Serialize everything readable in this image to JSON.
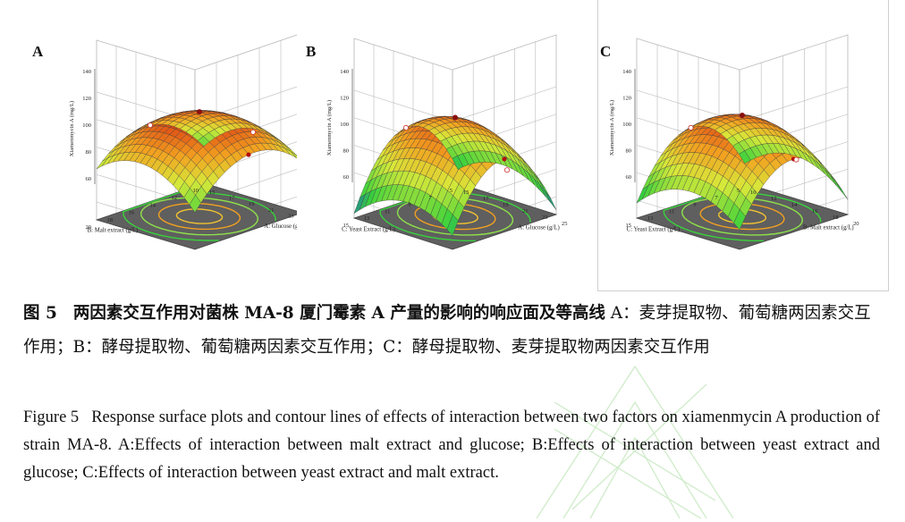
{
  "figure": {
    "panels": [
      {
        "label": "A",
        "zlabel": "Xiamenmycin A (mg/L)",
        "zticks": [
          "60",
          "80",
          "100",
          "120",
          "140"
        ],
        "left_axis": {
          "label": "B: Malt extract (g/L)",
          "ticks": [
            "10",
            "12",
            "14",
            "16",
            "18",
            "20"
          ]
        },
        "right_axis": {
          "label": "A: Glucose (g/L)",
          "ticks": [
            "15",
            "17",
            "19",
            "21",
            "23",
            "25"
          ]
        }
      },
      {
        "label": "B",
        "zlabel": "Xiamenmycin A (mg/L)",
        "zticks": [
          "60",
          "80",
          "100",
          "120",
          "140"
        ],
        "left_axis": {
          "label": "C: Yeast Extract (g/L)",
          "ticks": [
            "5",
            "7",
            "9",
            "11",
            "13",
            "15"
          ]
        },
        "right_axis": {
          "label": "A: Glucose (g/L)",
          "ticks": [
            "15",
            "17",
            "19",
            "21",
            "23",
            "25"
          ]
        }
      },
      {
        "label": "C",
        "zlabel": "Xiamenmycin A (mg/L)",
        "zticks": [
          "60",
          "80",
          "100",
          "120",
          "140"
        ],
        "left_axis": {
          "label": "C: Yeast Extract (g/L)",
          "ticks": [
            "5",
            "7",
            "9",
            "11",
            "13",
            "15"
          ]
        },
        "right_axis": {
          "label": "B: Malt extract (g/L)",
          "ticks": [
            "10",
            "12",
            "14",
            "16",
            "18",
            "20"
          ]
        }
      }
    ]
  },
  "caption_cn": {
    "fig_num": "图 5",
    "title": "两因素交互作用对菌株 MA-8 厦门霉素 A 产量的影响的响应面及等高线",
    "body": " A：麦芽提取物、葡萄糖两因素交互作用；B：酵母提取物、葡萄糖两因素交互作用；C：酵母提取物、麦芽提取物两因素交互作用"
  },
  "caption_en": {
    "fig_num": "Figure 5",
    "body": "Response surface plots and contour lines of effects of interaction between two factors on xiamenmycin A production of strain MA-8. A:Effects of interaction between malt extract and glucose; B:Effects of interaction between yeast extract and glucose; C:Effects of interaction between yeast extract and malt extract."
  },
  "colors": {
    "high": "#d62a10",
    "mid_high": "#f2a020",
    "mid": "#d8e83a",
    "mid_low": "#39d23c",
    "low": "#0a3de8",
    "floor": "#5f5f5f",
    "grid": "#b8b8b8"
  }
}
